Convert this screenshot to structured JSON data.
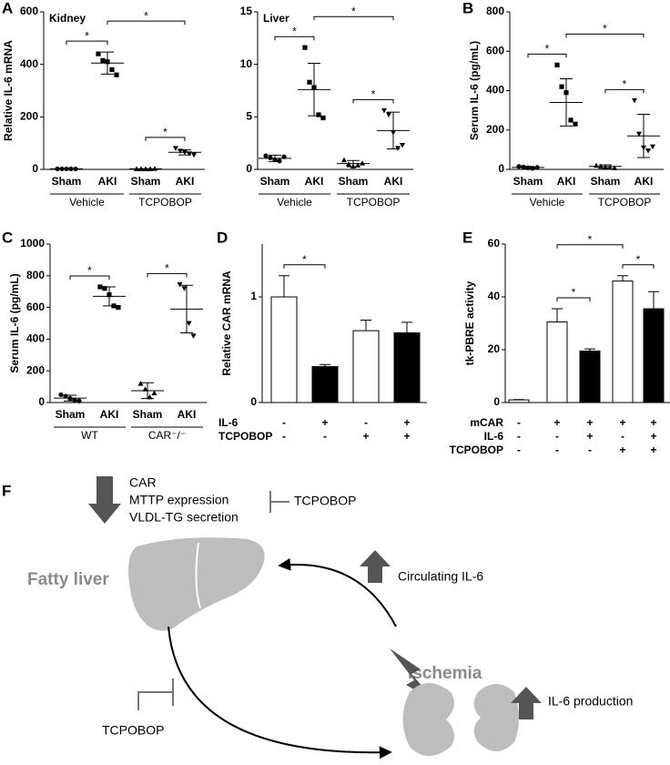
{
  "chart_data": [
    {
      "type": "scatter",
      "panel_label": "A",
      "title": "Kidney",
      "y_label": "Relative IL-6 mRNA",
      "ylim": [
        0,
        600
      ],
      "yticks": [
        0,
        200,
        400,
        600
      ],
      "categories": [
        "Sham",
        "AKI",
        "Sham",
        "AKI"
      ],
      "group_labels": [
        "Vehicle",
        "TCPOBOP"
      ],
      "markers": [
        "circle",
        "square",
        "triangle",
        "triangle-down"
      ],
      "points": [
        [
          2,
          2,
          2,
          2,
          2
        ],
        [
          440,
          415,
          410,
          380,
          360
        ],
        [
          2,
          2,
          2,
          2,
          3
        ],
        [
          80,
          70,
          65,
          60,
          55
        ]
      ],
      "mean": [
        2,
        405,
        2,
        65
      ],
      "sd": [
        0.5,
        42,
        0.5,
        10
      ],
      "significance": [
        {
          "label": "*",
          "between": [
            0,
            1
          ]
        },
        {
          "label": "*",
          "between": [
            1,
            3
          ]
        },
        {
          "label": "*",
          "between": [
            2,
            3
          ]
        }
      ]
    },
    {
      "type": "scatter",
      "title": "Liver",
      "ylim": [
        0,
        15
      ],
      "yticks": [
        0,
        5,
        10,
        15
      ],
      "categories": [
        "Sham",
        "AKI",
        "Sham",
        "AKI"
      ],
      "group_labels": [
        "Vehicle",
        "TCPOBOP"
      ],
      "markers": [
        "circle",
        "square",
        "triangle",
        "triangle-down"
      ],
      "points": [
        [
          1.3,
          1.1,
          0.9,
          0.8,
          1.2
        ],
        [
          11.6,
          8.3,
          7.8,
          5.2,
          4.9
        ],
        [
          0.9,
          0.5,
          0.3,
          0.4,
          0.6
        ],
        [
          5.6,
          5.2,
          3.5,
          2.0,
          2.3
        ]
      ],
      "mean": [
        1.05,
        7.6,
        0.55,
        3.7
      ],
      "sd": [
        0.3,
        2.5,
        0.3,
        1.75
      ],
      "significance": [
        {
          "label": "*",
          "between": [
            0,
            1
          ]
        },
        {
          "label": "*",
          "between": [
            1,
            3
          ]
        },
        {
          "label": "*",
          "between": [
            2,
            3
          ]
        }
      ]
    },
    {
      "type": "scatter",
      "panel_label": "B",
      "y_label": "Serum IL-6 (pg/mL)",
      "ylim": [
        0,
        800
      ],
      "yticks": [
        0,
        200,
        400,
        600,
        800
      ],
      "categories": [
        "Sham",
        "AKI",
        "Sham",
        "AKI"
      ],
      "group_labels": [
        "Vehicle",
        "TCPOBOP"
      ],
      "markers": [
        "circle",
        "square",
        "triangle",
        "triangle-down"
      ],
      "points": [
        [
          15,
          12,
          8,
          5,
          10
        ],
        [
          530,
          420,
          390,
          250,
          230
        ],
        [
          20,
          15,
          12,
          10,
          8
        ],
        [
          350,
          180,
          110,
          95,
          115
        ]
      ],
      "mean": [
        10,
        340,
        15,
        170
      ],
      "sd": [
        5,
        120,
        8,
        110
      ],
      "significance": [
        {
          "label": "*",
          "between": [
            0,
            1
          ]
        },
        {
          "label": "*",
          "between": [
            1,
            3
          ]
        },
        {
          "label": "*",
          "between": [
            2,
            3
          ]
        }
      ]
    },
    {
      "type": "scatter",
      "panel_label": "C",
      "y_label": "Serum IL-6 (pg/mL)",
      "ylim": [
        0,
        1000
      ],
      "yticks": [
        0,
        200,
        400,
        600,
        800,
        1000
      ],
      "categories": [
        "Sham",
        "AKI",
        "Sham",
        "AKI"
      ],
      "group_labels": [
        "WT",
        "CAR⁻/⁻"
      ],
      "markers": [
        "circle",
        "square",
        "triangle",
        "triangle-down"
      ],
      "points": [
        [
          50,
          40,
          25,
          15,
          10
        ],
        [
          730,
          720,
          680,
          610,
          600
        ],
        [
          120,
          85,
          35,
          60
        ],
        [
          745,
          720,
          500,
          420
        ]
      ],
      "mean": [
        28,
        670,
        75,
        590
      ],
      "sd": [
        18,
        60,
        50,
        150
      ],
      "significance": [
        {
          "label": "*",
          "between": [
            0,
            1
          ]
        },
        {
          "label": "*",
          "between": [
            2,
            3
          ]
        }
      ]
    },
    {
      "type": "bar",
      "panel_label": "D",
      "y_label": "Relative CAR mRNA",
      "ylim": [
        0,
        1.5
      ],
      "yticks": [
        0,
        1
      ],
      "values": [
        1.0,
        0.34,
        0.68,
        0.66
      ],
      "errors": [
        0.2,
        0.02,
        0.1,
        0.1
      ],
      "colors": [
        "#ffffff",
        "#000000",
        "#ffffff",
        "#000000"
      ],
      "conditions": [
        {
          "name": "IL-6",
          "signs": [
            "-",
            "+",
            "-",
            "+"
          ]
        },
        {
          "name": "TCPOBOP",
          "signs": [
            "-",
            "-",
            "+",
            "+"
          ]
        }
      ],
      "significance": [
        {
          "label": "*",
          "between": [
            0,
            1
          ]
        }
      ]
    },
    {
      "type": "bar",
      "panel_label": "E",
      "y_label": "tk-PBRE activity",
      "ylim": [
        0,
        60
      ],
      "yticks": [
        0,
        20,
        40,
        60
      ],
      "values": [
        1,
        30.5,
        19.5,
        46,
        35.5
      ],
      "errors": [
        0.1,
        5,
        0.8,
        2,
        6.5
      ],
      "colors": [
        "#ffffff",
        "#ffffff",
        "#000000",
        "#ffffff",
        "#000000"
      ],
      "conditions": [
        {
          "name": "mCAR",
          "signs": [
            "-",
            "+",
            "+",
            "+",
            "+"
          ]
        },
        {
          "name": "IL-6",
          "signs": [
            "-",
            "-",
            "+",
            "-",
            "+"
          ]
        },
        {
          "name": "TCPOBOP",
          "signs": [
            "-",
            "-",
            "-",
            "+",
            "+"
          ]
        }
      ],
      "significance": [
        {
          "label": "*",
          "between": [
            1,
            2
          ]
        },
        {
          "label": "*",
          "between": [
            1,
            3
          ]
        },
        {
          "label": "*",
          "between": [
            3,
            4
          ]
        }
      ]
    }
  ],
  "diagram": {
    "panel_label": "F",
    "effects": [
      "CAR",
      "MTTP expression",
      "VLDL-TG secretion"
    ],
    "inhibitor_top": "TCPOBOP",
    "liver": "Fatty liver",
    "circulating": "Circulating IL-6",
    "ischemia": "Ischemia",
    "production": "IL-6 production",
    "inhibitor_bottom": "TCPOBOP"
  }
}
